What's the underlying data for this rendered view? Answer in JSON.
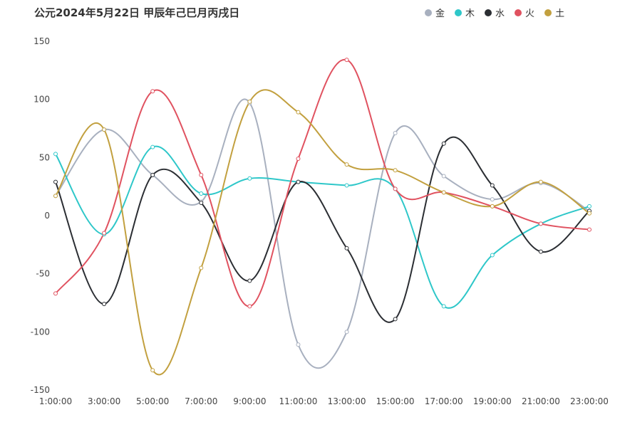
{
  "chart_data": {
    "type": "line",
    "title": "公元2024年5月22日 甲辰年己巳月丙戌日",
    "categories": [
      "1:00:00",
      "3:00:00",
      "5:00:00",
      "7:00:00",
      "9:00:00",
      "11:00:00",
      "13:00:00",
      "15:00:00",
      "17:00:00",
      "19:00:00",
      "21:00:00",
      "23:00:00"
    ],
    "ylim": [
      -150,
      150
    ],
    "yticks": [
      150,
      100,
      50,
      0,
      -50,
      -100,
      -150
    ],
    "grid": false,
    "legend_position": "top-right",
    "smooth": true,
    "series": [
      {
        "name": "金",
        "color": "#a8b0bf",
        "values": [
          17,
          74,
          35,
          12,
          97,
          -111,
          -100,
          71,
          34,
          14,
          28,
          4
        ]
      },
      {
        "name": "木",
        "color": "#2ec7c9",
        "values": [
          53,
          -16,
          59,
          19,
          32,
          29,
          26,
          23,
          -78,
          -34,
          -7,
          8
        ]
      },
      {
        "name": "水",
        "color": "#2b2e33",
        "values": [
          29,
          -76,
          35,
          11,
          -56,
          29,
          -28,
          -89,
          62,
          26,
          -31,
          4
        ]
      },
      {
        "name": "火",
        "color": "#e05260",
        "values": [
          -67,
          -15,
          107,
          35,
          -78,
          49,
          134,
          23,
          20,
          8,
          -7,
          -12
        ]
      },
      {
        "name": "土",
        "color": "#c2a03f",
        "values": [
          17,
          74,
          -133,
          -45,
          98,
          89,
          44,
          39,
          20,
          8,
          29,
          2
        ]
      }
    ]
  }
}
